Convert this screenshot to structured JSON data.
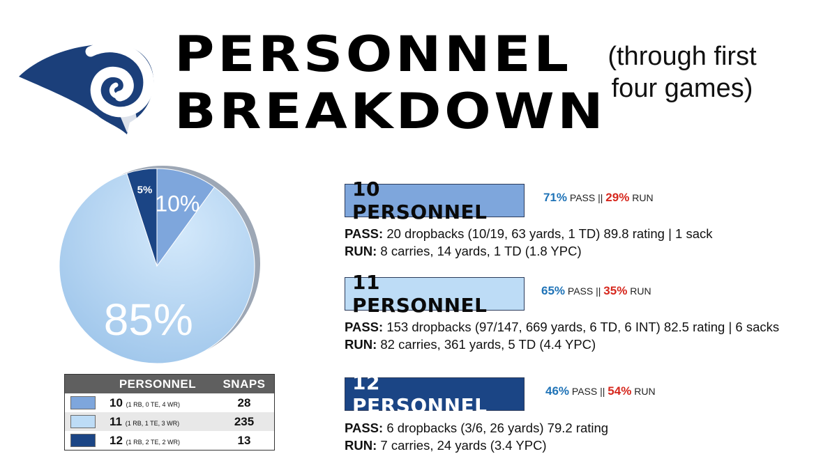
{
  "title_line1": "PERSONNEL",
  "title_line2": "BREAKDOWN",
  "subtitle_line1": "(through first",
  "subtitle_line2": "four games)",
  "colors": {
    "p10": "#7ea6dc",
    "p11": "#bddcf6",
    "p12": "#1b4585",
    "pass": "#1f73b7",
    "run": "#d6271d"
  },
  "chart_data": {
    "type": "pie",
    "categories": [
      "10",
      "11",
      "12"
    ],
    "values": [
      10,
      85,
      5
    ],
    "slice_labels": [
      "10%",
      "85%",
      "5%"
    ]
  },
  "table": {
    "headers": [
      "PERSONNEL",
      "SNAPS"
    ],
    "rows": [
      {
        "personnel": "10",
        "detail": "(1 RB, 0 TE, 4 WR)",
        "snaps": "28"
      },
      {
        "personnel": "11",
        "detail": "(1 RB, 1 TE, 3 WR)",
        "snaps": "235"
      },
      {
        "personnel": "12",
        "detail": "(1 RB, 2 TE, 2 WR)",
        "snaps": "13"
      }
    ]
  },
  "breakdowns": [
    {
      "label": "10 PERSONNEL",
      "pass_pct": "71%",
      "pass_word": "PASS ||",
      "run_pct": "29%",
      "run_word": "RUN",
      "pass_label": "PASS:",
      "pass_text": "20 dropbacks (10/19, 63 yards, 1 TD) 89.8 rating | 1 sack",
      "run_label": "RUN:",
      "run_text": "8 carries, 14 yards, 1 TD (1.8 YPC)"
    },
    {
      "label": "11 PERSONNEL",
      "pass_pct": "65%",
      "pass_word": "PASS ||",
      "run_pct": "35%",
      "run_word": "RUN",
      "pass_label": "PASS:",
      "pass_text": "153 dropbacks (97/147, 669 yards, 6 TD, 6 INT) 82.5 rating | 6 sacks",
      "run_label": "RUN:",
      "run_text": "82 carries, 361 yards, 5 TD (4.4 YPC)"
    },
    {
      "label": "12 PERSONNEL",
      "pass_pct": "46%",
      "pass_word": "PASS ||",
      "run_pct": "54%",
      "run_word": "RUN",
      "pass_label": "PASS:",
      "pass_text": "6 dropbacks (3/6, 26 yards) 79.2 rating",
      "run_label": "RUN:",
      "run_text": "7 carries, 24 yards (3.4 YPC)"
    }
  ]
}
